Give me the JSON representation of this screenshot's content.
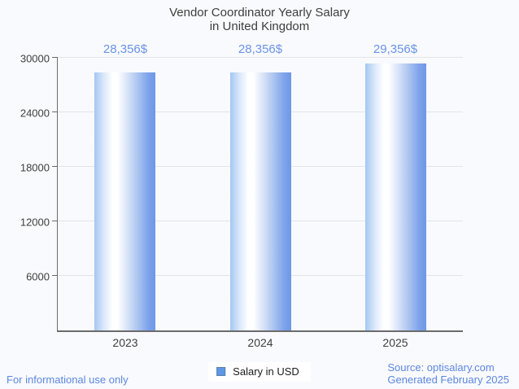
{
  "title": {
    "line1": "Vendor Coordinator Yearly Salary",
    "line2": "in United Kingdom"
  },
  "chart_data": {
    "type": "bar",
    "title": "Vendor Coordinator Yearly Salary in United Kingdom",
    "categories": [
      "2023",
      "2024",
      "2025"
    ],
    "series": [
      {
        "name": "Salary in USD",
        "values": [
          28356,
          28356,
          29356
        ]
      }
    ],
    "value_labels": [
      "28,356$",
      "28,356$",
      "29,356$"
    ],
    "xlabel": "",
    "ylabel": "",
    "ylim": [
      0,
      30000
    ],
    "y_ticks": [
      6000,
      12000,
      18000,
      24000,
      30000
    ],
    "grid": true,
    "legend_position": "bottom"
  },
  "legend": {
    "label": "Salary in USD",
    "swatch_color": "#5e97e4"
  },
  "footer": {
    "left": "For informational use only",
    "source": "Source: optisalary.com",
    "generated": "Generated February 2025"
  },
  "colors": {
    "background": "#f9fafd",
    "bar_left": "#a3c7f3",
    "bar_mid": "#ffffff",
    "bar_right": "#6e97e8",
    "value_label": "#6a93e6",
    "footer_text": "#5c87e0",
    "axis": "#6b6b6b",
    "grid": "#e3e4e8",
    "text": "#3f3f3f"
  }
}
